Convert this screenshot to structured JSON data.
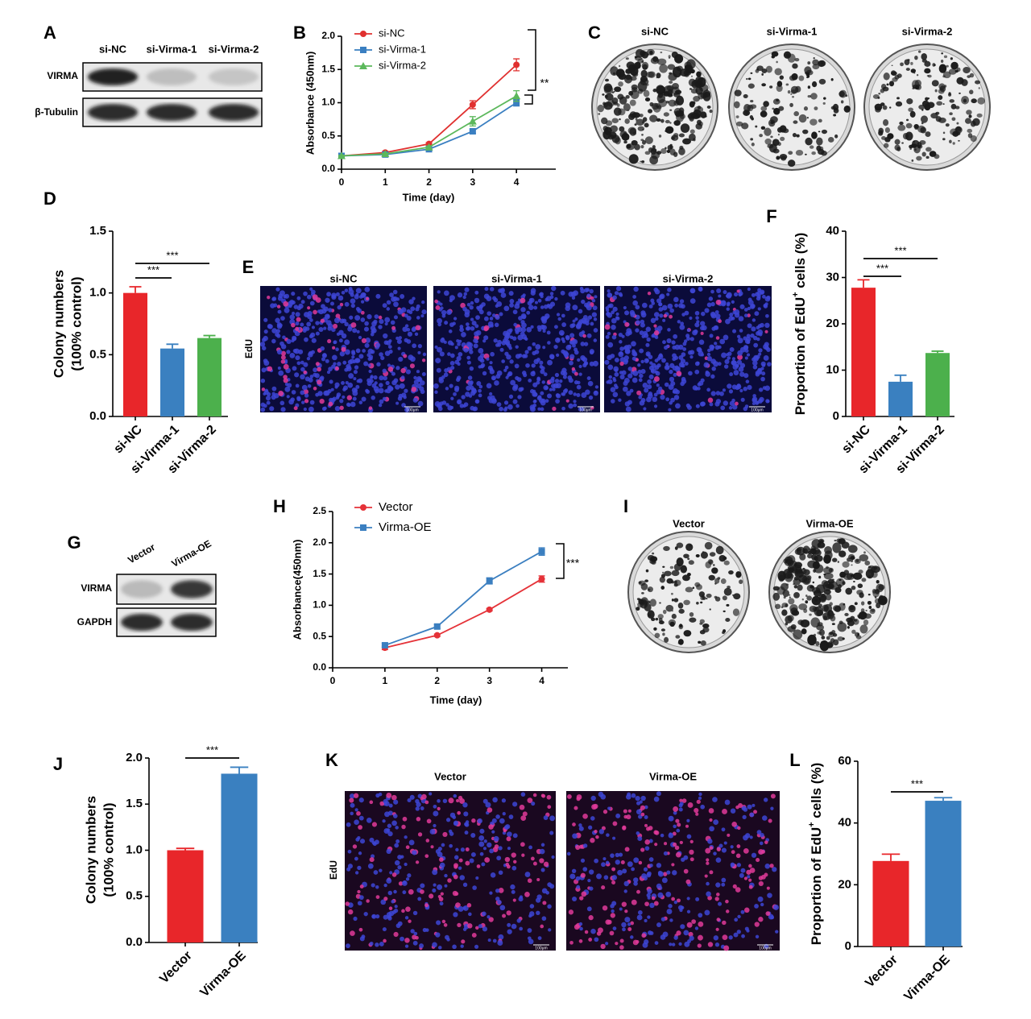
{
  "figure": {
    "panel_labels": [
      "A",
      "B",
      "C",
      "D",
      "E",
      "F",
      "G",
      "H",
      "I",
      "J",
      "K",
      "L"
    ],
    "blot_A": {
      "lanes": [
        "si-NC",
        "si-Virma-1",
        "si-Virma-2"
      ],
      "rows": [
        "VIRMA",
        "β-Tubulin"
      ]
    },
    "plates_C": [
      "si-NC",
      "si-Virma-1",
      "si-Virma-2"
    ],
    "images_E": {
      "labels": [
        "si-NC",
        "si-Virma-1",
        "si-Virma-2"
      ],
      "stain": "EdU"
    },
    "blot_G": {
      "lanes": [
        "Vector",
        "Virma-OE"
      ],
      "rows": [
        "VIRMA",
        "GAPDH"
      ]
    },
    "plates_I": [
      "Vector",
      "Virma-OE"
    ],
    "images_K": {
      "labels": [
        "Vector",
        "Virma-OE"
      ],
      "stain": "EdU"
    },
    "scale_bar": "100μm"
  },
  "chart_data": [
    {
      "type": "line",
      "xlabel": "Time (day)",
      "ylabel": "Absorbance (450nm)",
      "x": [
        0,
        1,
        2,
        3,
        4
      ],
      "xlim": [
        0,
        4.9
      ],
      "xticks": [
        0,
        1,
        2,
        3,
        4
      ],
      "ylim": [
        0,
        2
      ],
      "yticks": [
        {
          "value": 0,
          "label": "0.0"
        },
        {
          "value": 0.5,
          "label": "0.5"
        },
        {
          "value": 1,
          "label": "1.0"
        },
        {
          "value": 1.5,
          "label": "1.5"
        },
        {
          "value": 2,
          "label": "2.0"
        }
      ],
      "series": [
        {
          "name": "si-NC",
          "color": "#e0302f",
          "marker": "circle",
          "values": [
            0.2,
            0.25,
            0.38,
            0.97,
            1.57
          ],
          "errors": [
            0.01,
            0.02,
            0.02,
            0.06,
            0.09
          ]
        },
        {
          "name": "si-Virma-1",
          "color": "#3a7fc1",
          "marker": "square",
          "values": [
            0.2,
            0.22,
            0.3,
            0.57,
            1.0
          ],
          "errors": [
            0.01,
            0.01,
            0.02,
            0.03,
            0.05
          ]
        },
        {
          "name": "si-Virma-2",
          "color": "#5cb85c",
          "marker": "triangle",
          "values": [
            0.2,
            0.23,
            0.33,
            0.72,
            1.1
          ],
          "errors": [
            0.01,
            0.01,
            0.02,
            0.07,
            0.08
          ]
        }
      ],
      "annotations": [
        "**"
      ]
    },
    {
      "type": "bar",
      "ylabel_lines": [
        "Colony numbers",
        "(100% control)"
      ],
      "categories": [
        "si-NC",
        "si-Virma-1",
        "si-Virma-2"
      ],
      "values": [
        1.0,
        0.55,
        0.635
      ],
      "errors": [
        0.05,
        0.035,
        0.02
      ],
      "colors": [
        "#e8262a",
        "#3a80c0",
        "#4cb04c"
      ],
      "ylim": [
        0,
        1.5
      ],
      "yticks": [
        {
          "value": 0,
          "label": "0.0"
        },
        {
          "value": 0.5,
          "label": "0.5"
        },
        {
          "value": 1,
          "label": "1.0"
        },
        {
          "value": 1.5,
          "label": "1.5"
        }
      ],
      "annotations": [
        "***",
        "***"
      ]
    },
    {
      "type": "bar",
      "ylabel_rich": {
        "text": "Proportion of EdU",
        "sup": "+",
        "tail": " cells (%)"
      },
      "categories": [
        "si-NC",
        "si-Virma-1",
        "si-Virma-2"
      ],
      "values": [
        27.8,
        7.5,
        13.7
      ],
      "errors": [
        1.7,
        1.4,
        0.4
      ],
      "colors": [
        "#e8262a",
        "#3a80c0",
        "#4cb04c"
      ],
      "ylim": [
        0,
        40
      ],
      "yticks": [
        0,
        10,
        20,
        30,
        40
      ],
      "annotations": [
        "***",
        "***"
      ]
    },
    {
      "type": "line",
      "xlabel": "Time (day)",
      "ylabel": "Absorbance(450nm)",
      "x": [
        1,
        2,
        3,
        4
      ],
      "xlim": [
        0,
        4.5
      ],
      "xticks": [
        0,
        1,
        2,
        3,
        4
      ],
      "ylim": [
        0,
        2.5
      ],
      "yticks": [
        {
          "value": 0,
          "label": "0.0"
        },
        {
          "value": 0.5,
          "label": "0.5"
        },
        {
          "value": 1,
          "label": "1.0"
        },
        {
          "value": 1.5,
          "label": "1.5"
        },
        {
          "value": 2,
          "label": "2.0"
        },
        {
          "value": 2.5,
          "label": "2.5"
        }
      ],
      "series": [
        {
          "name": "Vector",
          "color": "#e53238",
          "marker": "circle",
          "values": [
            0.32,
            0.52,
            0.93,
            1.42
          ],
          "errors": [
            0.03,
            0.02,
            0.02,
            0.05
          ]
        },
        {
          "name": "Virma-OE",
          "color": "#3b7fc0",
          "marker": "square",
          "values": [
            0.36,
            0.66,
            1.39,
            1.86
          ],
          "errors": [
            0.03,
            0.03,
            0.05,
            0.06
          ]
        }
      ],
      "annotations": [
        "***"
      ]
    },
    {
      "type": "bar",
      "ylabel_lines": [
        "Colony numbers",
        "(100% control)"
      ],
      "categories": [
        "Vector",
        "Virma-OE"
      ],
      "values": [
        1.0,
        1.83
      ],
      "errors": [
        0.02,
        0.07
      ],
      "colors": [
        "#e8262a",
        "#3a80c0"
      ],
      "ylim": [
        0,
        2
      ],
      "yticks": [
        {
          "value": 0,
          "label": "0.0"
        },
        {
          "value": 0.5,
          "label": "0.5"
        },
        {
          "value": 1,
          "label": "1.0"
        },
        {
          "value": 1.5,
          "label": "1.5"
        },
        {
          "value": 2,
          "label": "2.0"
        }
      ],
      "annotations": [
        "***"
      ]
    },
    {
      "type": "bar",
      "ylabel_rich": {
        "text": "Proportion of EdU",
        "sup": "+",
        "tail": " cells (%)"
      },
      "categories": [
        "Vector",
        "Virma-OE"
      ],
      "values": [
        27.7,
        47.2
      ],
      "errors": [
        2.2,
        1.0
      ],
      "colors": [
        "#e8262a",
        "#3a80c0"
      ],
      "ylim": [
        0,
        60
      ],
      "yticks": [
        0,
        20,
        40,
        60
      ],
      "annotations": [
        "***"
      ]
    }
  ]
}
